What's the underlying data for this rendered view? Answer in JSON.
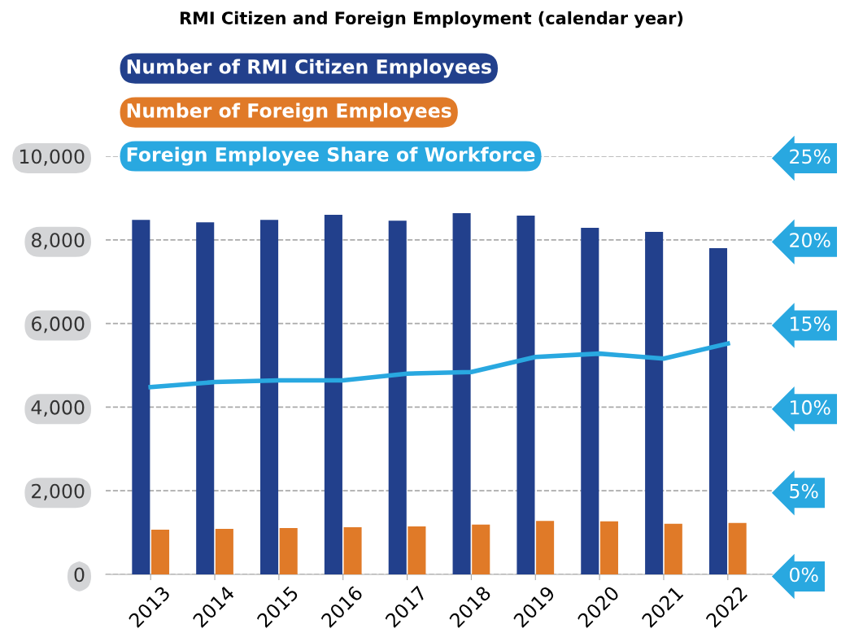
{
  "chart_data": {
    "type": "bar",
    "title": "RMI Citizen and Foreign Employment (calendar year)",
    "categories": [
      "2013",
      "2014",
      "2015",
      "2016",
      "2017",
      "2018",
      "2019",
      "2020",
      "2021",
      "2022"
    ],
    "series": [
      {
        "name": "Number of RMI Citizen Employees",
        "color": "#22408c",
        "values": [
          8480,
          8420,
          8480,
          8600,
          8460,
          8640,
          8580,
          8290,
          8190,
          7800
        ]
      },
      {
        "name": "Number of Foreign Employees",
        "color": "#e07a28",
        "values": [
          1070,
          1090,
          1110,
          1130,
          1150,
          1190,
          1280,
          1270,
          1210,
          1230
        ]
      },
      {
        "name": "Foreign Employee Share of Workforce",
        "color": "#29a8e0",
        "type": "line",
        "axis": "y2",
        "values": [
          11.2,
          11.5,
          11.6,
          11.6,
          12.0,
          12.1,
          13.0,
          13.2,
          12.9,
          13.8
        ]
      }
    ],
    "ylim": [
      0,
      10000
    ],
    "yticks": [
      {
        "value": 0,
        "label": "0"
      },
      {
        "value": 2000,
        "label": "2,000"
      },
      {
        "value": 4000,
        "label": "4,000"
      },
      {
        "value": 6000,
        "label": "6,000"
      },
      {
        "value": 8000,
        "label": "8,000"
      },
      {
        "value": 10000,
        "label": "10,000"
      }
    ],
    "y2lim": [
      0,
      25
    ],
    "y2ticks": [
      {
        "value": 0,
        "label": "0%"
      },
      {
        "value": 5,
        "label": "5%"
      },
      {
        "value": 10,
        "label": "10%"
      },
      {
        "value": 15,
        "label": "15%"
      },
      {
        "value": 20,
        "label": "20%"
      },
      {
        "value": 25,
        "label": "25%"
      }
    ],
    "grid": "y",
    "legend": "top left",
    "marker": "none",
    "line_style": "solid"
  }
}
